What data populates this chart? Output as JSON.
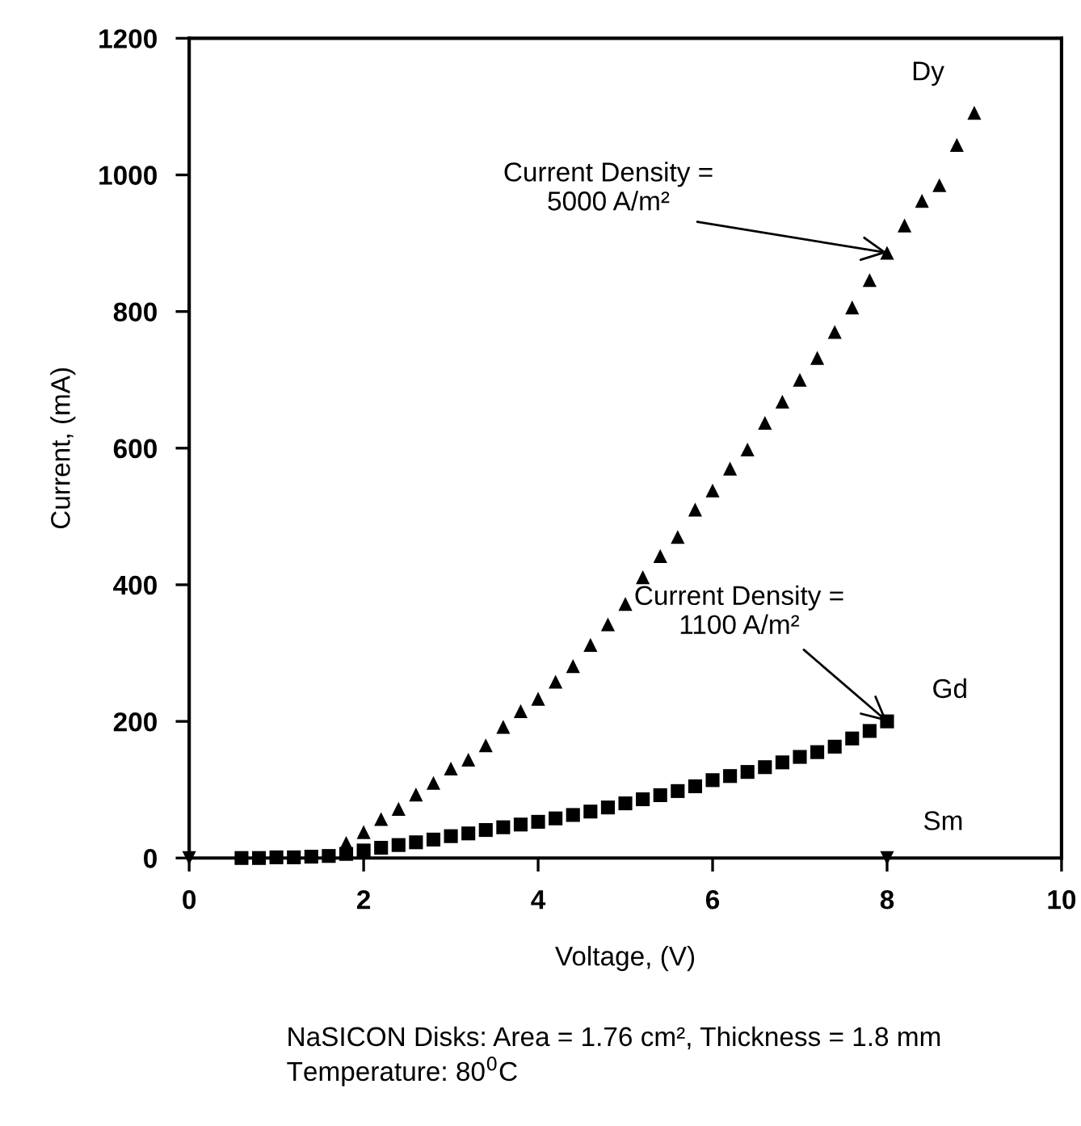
{
  "chart_data": {
    "type": "scatter",
    "xlabel": "Voltage, (V)",
    "ylabel": "Current, (mA)",
    "xlim": [
      0,
      10
    ],
    "ylim": [
      0,
      1200
    ],
    "xticks": [
      0,
      2,
      4,
      6,
      8,
      10
    ],
    "yticks": [
      0,
      200,
      400,
      600,
      800,
      1000,
      1200
    ],
    "grid": false,
    "legend": false,
    "series": [
      {
        "name": "Dy",
        "color": "#000000",
        "marker": "triangle",
        "x": [
          1.8,
          2.0,
          2.2,
          2.4,
          2.6,
          2.8,
          3.0,
          3.2,
          3.4,
          3.6,
          3.8,
          4.0,
          4.2,
          4.4,
          4.6,
          4.8,
          5.0,
          5.2,
          5.4,
          5.6,
          5.8,
          6.0,
          6.2,
          6.4,
          6.6,
          6.8,
          7.0,
          7.2,
          7.4,
          7.6,
          7.8,
          8.0,
          8.2,
          8.4,
          8.6,
          8.8,
          9.0
        ],
        "values": [
          22,
          38,
          57,
          72,
          93,
          110,
          131,
          144,
          165,
          192,
          215,
          233,
          258,
          281,
          312,
          342,
          372,
          411,
          442,
          470,
          510,
          538,
          570,
          598,
          637,
          668,
          700,
          732,
          770,
          806,
          846,
          886,
          926,
          962,
          985,
          1044,
          1091
        ]
      },
      {
        "name": "Gd",
        "color": "#000000",
        "marker": "square",
        "x": [
          0.6,
          0.8,
          1.0,
          1.2,
          1.4,
          1.6,
          1.8,
          2.0,
          2.2,
          2.4,
          2.6,
          2.8,
          3.0,
          3.2,
          3.4,
          3.6,
          3.8,
          4.0,
          4.2,
          4.4,
          4.6,
          4.8,
          5.0,
          5.2,
          5.4,
          5.6,
          5.8,
          6.0,
          6.2,
          6.4,
          6.6,
          6.8,
          7.0,
          7.2,
          7.4,
          7.6,
          7.8,
          8.0
        ],
        "values": [
          0,
          0,
          1,
          1,
          2,
          3,
          6,
          11,
          15,
          19,
          23,
          27,
          32,
          36,
          41,
          45,
          49,
          53,
          58,
          63,
          68,
          74,
          80,
          86,
          92,
          98,
          105,
          114,
          120,
          126,
          133,
          140,
          148,
          155,
          163,
          175,
          186,
          200
        ]
      },
      {
        "name": "Sm",
        "color": "#000000",
        "marker": "triangle_down",
        "x": [
          0,
          8
        ],
        "values": [
          0,
          0
        ]
      }
    ],
    "annotations": [
      {
        "text": "Current Density =\n5000 A/m²",
        "x": 8.0,
        "y": 886
      },
      {
        "text": "Current Density =\n1100 A/m²",
        "x": 8.0,
        "y": 200
      },
      "NaSICON Disks: Area = 1.76 cm², Thickness = 1.8 mm\nTemperature: 80$^{0}$C"
    ]
  }
}
